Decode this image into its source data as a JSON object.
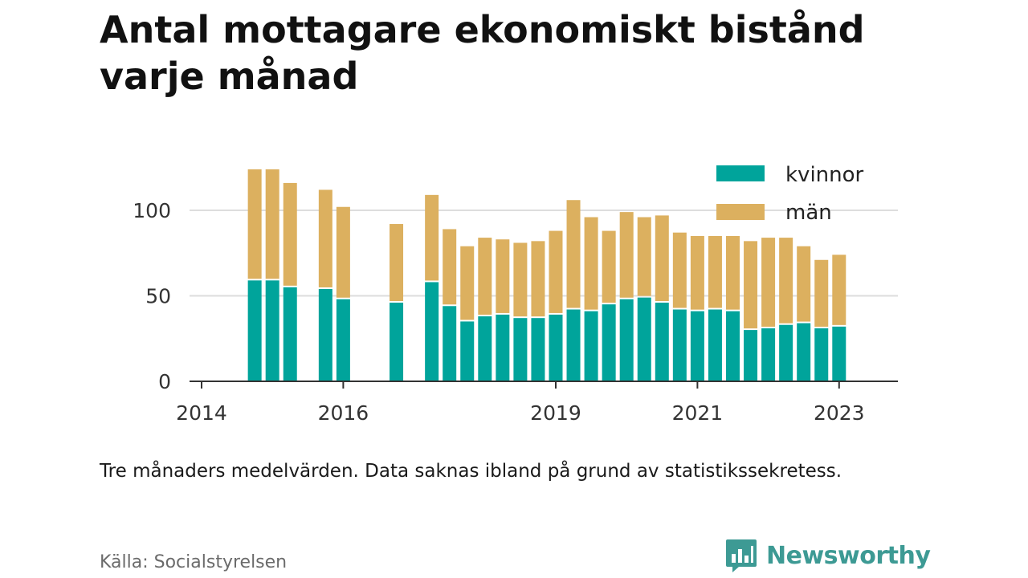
{
  "brand": {
    "name": "Newsworthy"
  },
  "colors": {
    "kvinnor": "#00a49b",
    "man": "#dcb05f",
    "grid": "#dddddd",
    "axis": "#333333"
  },
  "chart_data": {
    "type": "bar",
    "stacked": true,
    "title": "Antal mottagare ekonomiskt bistånd varje månad",
    "subtitle": "Tre månaders medelvärden. Data saknas ibland på grund av statistikssekretess.",
    "source": "Källa: Socialstyrelsen",
    "xlabel": "",
    "ylabel": "",
    "ylim": [
      0,
      130
    ],
    "yticks": [
      0,
      50,
      100
    ],
    "xlim": [
      2013.83,
      2023.83
    ],
    "xticks": [
      2014,
      2016,
      2019,
      2021,
      2023
    ],
    "grid": true,
    "legend": "top-right",
    "x": [
      2014.75,
      2015.0,
      2015.25,
      2015.75,
      2016.0,
      2016.75,
      2017.25,
      2017.5,
      2017.75,
      2018.0,
      2018.25,
      2018.5,
      2018.75,
      2019.0,
      2019.25,
      2019.5,
      2019.75,
      2020.0,
      2020.25,
      2020.5,
      2020.75,
      2021.0,
      2021.25,
      2021.5,
      2021.75,
      2022.0,
      2022.25,
      2022.5,
      2022.75,
      2023.0
    ],
    "series": [
      {
        "name": "kvinnor",
        "values": [
          59,
          59,
          55,
          54,
          48,
          46,
          58,
          44,
          35,
          38,
          39,
          37,
          37,
          39,
          42,
          41,
          45,
          48,
          49,
          46,
          42,
          41,
          42,
          41,
          30,
          31,
          33,
          34,
          31,
          32
        ]
      },
      {
        "name": "män",
        "values": [
          65,
          65,
          61,
          58,
          54,
          46,
          51,
          45,
          44,
          46,
          44,
          44,
          45,
          49,
          64,
          55,
          43,
          51,
          47,
          51,
          45,
          44,
          43,
          44,
          52,
          53,
          51,
          45,
          40,
          42
        ]
      }
    ]
  }
}
